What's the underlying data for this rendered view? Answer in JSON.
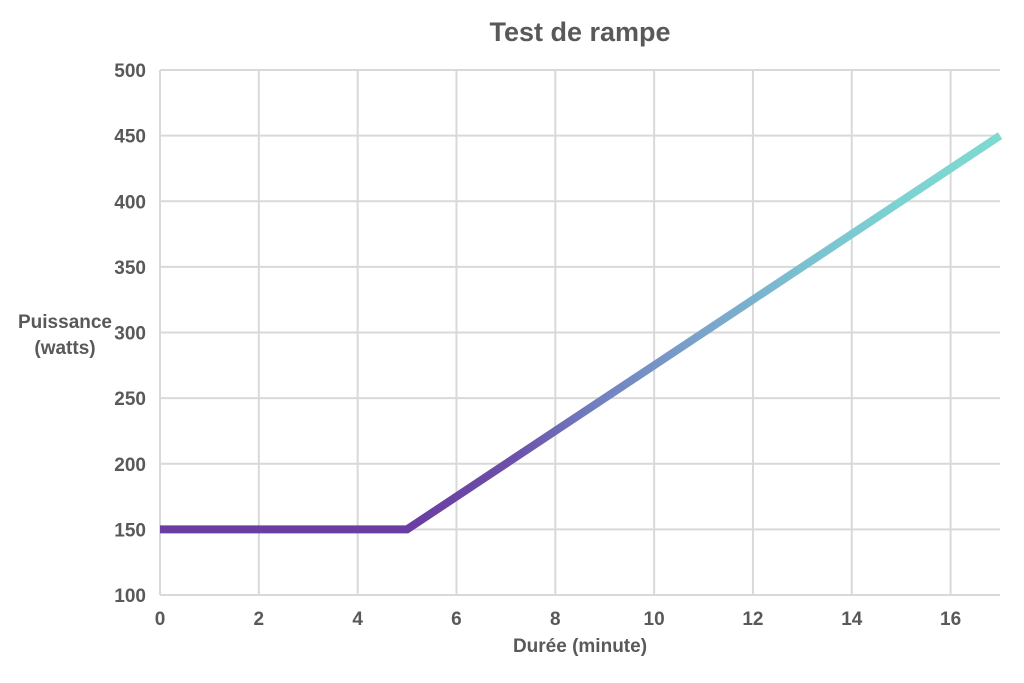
{
  "page": {
    "background": "#ffffff"
  },
  "chart_data": {
    "type": "line",
    "title": "Test de rampe",
    "xlabel": "Durée (minute)",
    "ylabel_lines": [
      "Puissance",
      "(watts)"
    ],
    "x_ticks": [
      0,
      2,
      4,
      6,
      8,
      10,
      12,
      14,
      16
    ],
    "y_ticks": [
      100,
      150,
      200,
      250,
      300,
      350,
      400,
      450,
      500
    ],
    "xlim": [
      0,
      17
    ],
    "ylim": [
      100,
      500
    ],
    "grid": true,
    "legend": "none",
    "series": [
      {
        "points": [
          [
            0,
            150
          ],
          [
            5,
            150
          ],
          [
            17,
            450
          ]
        ],
        "stroke_width": 8,
        "gradient_stops": [
          {
            "offset": 0,
            "color": "#6a3da2"
          },
          {
            "offset": 0.295,
            "color": "#6a3da2"
          },
          {
            "offset": 0.42,
            "color": "#6c50a9"
          },
          {
            "offset": 0.52,
            "color": "#7180c0"
          },
          {
            "offset": 0.64,
            "color": "#7aa2ca"
          },
          {
            "offset": 0.76,
            "color": "#7bbfd1"
          },
          {
            "offset": 0.88,
            "color": "#7dd2d2"
          },
          {
            "offset": 1,
            "color": "#7edad0"
          }
        ]
      }
    ],
    "colors": {
      "grid": "#d9d9d9",
      "text": "#595959",
      "title": "#595959"
    }
  }
}
